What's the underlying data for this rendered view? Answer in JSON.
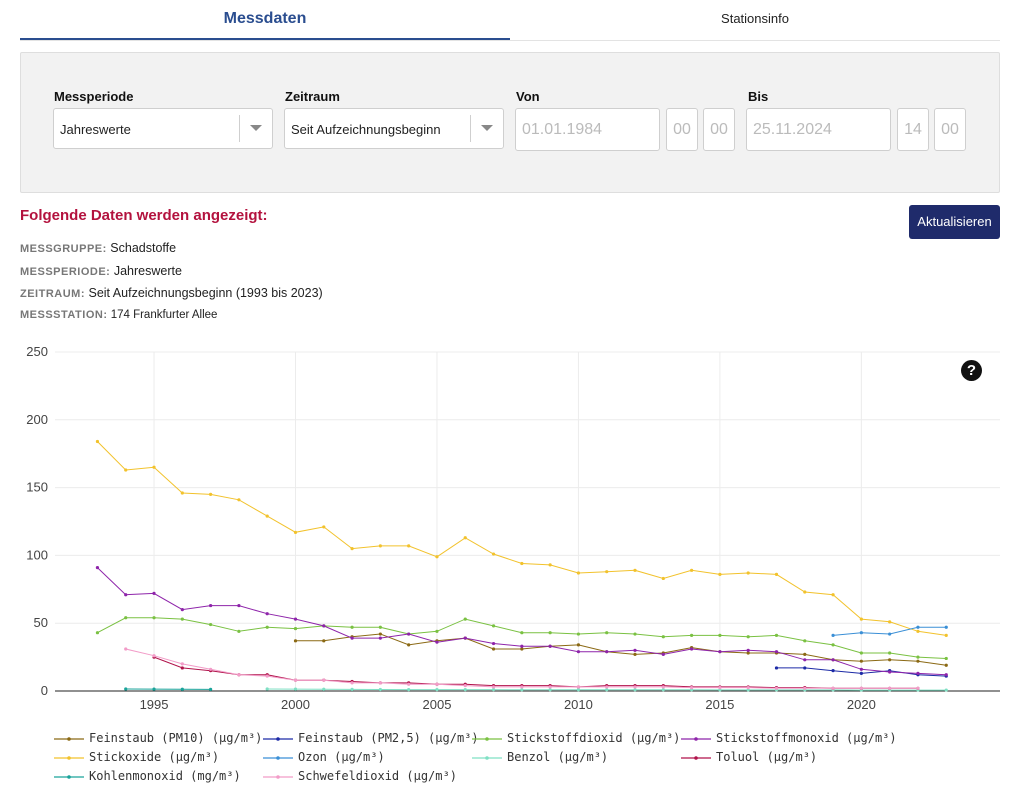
{
  "tabs": {
    "active": "Messdaten",
    "other": "Stationsinfo"
  },
  "filters": {
    "messperiode": {
      "label": "Messperiode",
      "value": "Jahreswerte"
    },
    "zeitraum": {
      "label": "Zeitraum",
      "value": "Seit Aufzeichnungsbeginn"
    },
    "von": {
      "label": "Von",
      "date": "01.01.1984",
      "hour": "00",
      "minute": "00"
    },
    "bis": {
      "label": "Bis",
      "date": "25.11.2024",
      "hour": "14",
      "minute": "00"
    }
  },
  "shown": {
    "title": "Folgende Daten werden angezeigt:",
    "update_button": "Aktualisieren",
    "messgruppe": {
      "key": "MESSGRUPPE:",
      "value": "Schadstoffe"
    },
    "messperiode": {
      "key": "MESSPERIODE:",
      "value": "Jahreswerte"
    },
    "zeitraum": {
      "key": "ZEITRAUM:",
      "value": "Seit Aufzeichnungsbeginn (1993 bis 2023)"
    },
    "messstation": {
      "key": "MESSSTATION:",
      "value": "174 Frankfurter Allee"
    }
  },
  "help_icon": "question-icon",
  "chart_data": {
    "type": "line",
    "ylim": [
      0,
      250
    ],
    "xlim": [
      1991.5,
      2024.9
    ],
    "yticks": [
      0,
      50,
      100,
      150,
      200,
      250
    ],
    "xticks": [
      1995,
      2000,
      2005,
      2010,
      2015,
      2020
    ],
    "grid": true,
    "legend_position": "bottom",
    "series": [
      {
        "name": "Feinstaub (PM10) (µg/m³)",
        "color": "#8b6914",
        "x": [
          2000,
          2001,
          2002,
          2003,
          2004,
          2005,
          2006,
          2007,
          2008,
          2009,
          2010,
          2011,
          2012,
          2013,
          2014,
          2015,
          2016,
          2017,
          2018,
          2019,
          2020,
          2021,
          2022,
          2023
        ],
        "y": [
          37,
          37,
          40,
          42,
          34,
          37,
          39,
          31,
          31,
          33,
          34,
          29,
          27,
          28,
          32,
          29,
          28,
          28,
          27,
          23,
          22,
          23,
          22,
          19
        ]
      },
      {
        "name": "Feinstaub (PM2,5) (µg/m³)",
        "color": "#1c2aa6",
        "x": [
          2017,
          2018,
          2019,
          2020,
          2021,
          2022,
          2023
        ],
        "y": [
          17,
          17,
          15,
          13,
          15,
          12,
          11
        ]
      },
      {
        "name": "Stickstoffdioxid (µg/m³)",
        "color": "#7ac142",
        "x": [
          1993,
          1994,
          1995,
          1996,
          1997,
          1998,
          1999,
          2000,
          2001,
          2002,
          2003,
          2004,
          2005,
          2006,
          2007,
          2008,
          2009,
          2010,
          2011,
          2012,
          2013,
          2014,
          2015,
          2016,
          2017,
          2018,
          2019,
          2020,
          2021,
          2022,
          2023
        ],
        "y": [
          43,
          54,
          54,
          53,
          49,
          44,
          47,
          46,
          48,
          47,
          47,
          42,
          44,
          53,
          48,
          43,
          43,
          42,
          43,
          42,
          40,
          41,
          41,
          40,
          41,
          37,
          34,
          28,
          28,
          25,
          24
        ]
      },
      {
        "name": "Stickstoffmonoxid (µg/m³)",
        "color": "#8e24aa",
        "x": [
          1993,
          1994,
          1995,
          1996,
          1997,
          1998,
          1999,
          2000,
          2001,
          2002,
          2003,
          2004,
          2005,
          2006,
          2007,
          2008,
          2009,
          2010,
          2011,
          2012,
          2013,
          2014,
          2015,
          2016,
          2017,
          2018,
          2019,
          2020,
          2021,
          2022,
          2023
        ],
        "y": [
          91,
          71,
          72,
          60,
          63,
          63,
          57,
          53,
          48,
          39,
          39,
          42,
          36,
          39,
          35,
          33,
          33,
          29,
          29,
          30,
          27,
          31,
          29,
          30,
          29,
          23,
          23,
          16,
          14,
          13,
          12
        ]
      },
      {
        "name": "Stickoxide (µg/m³)",
        "color": "#f2c22c",
        "x": [
          1993,
          1994,
          1995,
          1996,
          1997,
          1998,
          1999,
          2000,
          2001,
          2002,
          2003,
          2004,
          2005,
          2006,
          2007,
          2008,
          2009,
          2010,
          2011,
          2012,
          2013,
          2014,
          2015,
          2016,
          2017,
          2018,
          2019,
          2020,
          2021,
          2022,
          2023
        ],
        "y": [
          184,
          163,
          165,
          146,
          145,
          141,
          129,
          117,
          121,
          105,
          107,
          107,
          99,
          113,
          101,
          94,
          93,
          87,
          88,
          89,
          83,
          89,
          86,
          87,
          86,
          73,
          71,
          53,
          51,
          44,
          41
        ]
      },
      {
        "name": "Ozon (µg/m³)",
        "color": "#3a8fd6",
        "x": [
          2019,
          2020,
          2021,
          2022,
          2023
        ],
        "y": [
          41,
          43,
          42,
          47,
          47
        ]
      },
      {
        "name": "Benzol (µg/m³)",
        "color": "#7fe0c4",
        "x": [
          1999,
          2000,
          2001,
          2002,
          2003,
          2004,
          2005,
          2006,
          2007,
          2008,
          2009,
          2010,
          2011,
          2012,
          2013,
          2014,
          2015,
          2016,
          2017,
          2018,
          2019,
          2020,
          2021,
          2022,
          2023
        ],
        "y": [
          1.5,
          1.4,
          1.3,
          1.2,
          1.1,
          1.0,
          1.0,
          1.0,
          1.0,
          0.9,
          0.9,
          0.9,
          0.9,
          0.9,
          0.9,
          0.9,
          0.8,
          0.8,
          0.8,
          0.8,
          0.8,
          0.7,
          0.7,
          0.7,
          0.7
        ]
      },
      {
        "name": "Toluol (µg/m³)",
        "color": "#b0124a",
        "x": [
          1995,
          1996,
          1997,
          1998,
          1999,
          2000,
          2001,
          2002,
          2003,
          2004,
          2005,
          2006,
          2007,
          2008,
          2009,
          2010,
          2011,
          2012,
          2013,
          2014,
          2015,
          2016,
          2017,
          2018,
          2019,
          2020,
          2021,
          2022
        ],
        "y": [
          25,
          17,
          15,
          12,
          12,
          8,
          8,
          7,
          6,
          6,
          5,
          5,
          4,
          4,
          4,
          3,
          4,
          4,
          4,
          3,
          3,
          3,
          2.5,
          2.5,
          2,
          2,
          2,
          2
        ]
      },
      {
        "name": "Kohlenmonoxid (mg/m³)",
        "color": "#1aa39a",
        "x": [
          1994,
          1995,
          1996,
          1997
        ],
        "y": [
          1.5,
          1.4,
          1.3,
          1.2
        ]
      },
      {
        "name": "Schwefeldioxid (µg/m³)",
        "color": "#f29cc8",
        "x": [
          1994,
          1995,
          1996,
          1997,
          1998,
          1999,
          2000,
          2001,
          2002,
          2003,
          2004,
          2005,
          2006,
          2007,
          2008,
          2009,
          2010,
          2011,
          2012,
          2013,
          2014,
          2015,
          2016,
          2017,
          2018,
          2019,
          2020,
          2021,
          2022
        ],
        "y": [
          31,
          26,
          20,
          16,
          12,
          11,
          8,
          8,
          6,
          6,
          5,
          5,
          4,
          3,
          3,
          3,
          3,
          3,
          3,
          3,
          2.5,
          2.5,
          2.5,
          2,
          2,
          2,
          2,
          2,
          2
        ]
      }
    ]
  }
}
